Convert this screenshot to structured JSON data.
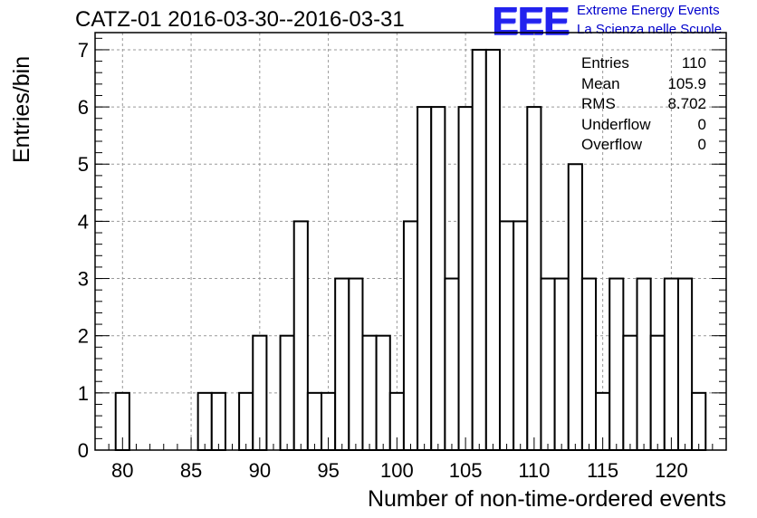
{
  "header": {
    "title": "CATZ-01 2016-03-30--2016-03-31",
    "logo_mark": "EEE",
    "logo_line1": "Extreme Energy Events",
    "logo_line2": "La Scienza nelle Scuole"
  },
  "stats_box": {
    "rows": [
      {
        "label": "Entries",
        "value": "110"
      },
      {
        "label": "Mean",
        "value": "105.9"
      },
      {
        "label": "RMS",
        "value": "8.702"
      },
      {
        "label": "Underflow",
        "value": "0"
      },
      {
        "label": "Overflow",
        "value": "0"
      }
    ]
  },
  "colors": {
    "logo": "#2222ee",
    "logo_text": "#0000cc",
    "bars": "#000000",
    "grid": "#999999"
  },
  "chart_data": {
    "type": "bar",
    "title": "CATZ-01 2016-03-30--2016-03-31",
    "xlabel": "Number of non-time-ordered events",
    "ylabel": "Entries/bin",
    "xlim": [
      78,
      124
    ],
    "ylim": [
      0,
      7.3
    ],
    "grid": true,
    "bin_width": 1,
    "xticks": [
      80,
      85,
      90,
      95,
      100,
      105,
      110,
      115,
      120
    ],
    "yticks": [
      0,
      1,
      2,
      3,
      4,
      5,
      6,
      7
    ],
    "x": [
      80,
      86,
      87,
      89,
      90,
      92,
      93,
      94,
      95,
      96,
      97,
      98,
      99,
      100,
      101,
      102,
      103,
      104,
      105,
      106,
      107,
      108,
      109,
      110,
      111,
      112,
      113,
      114,
      115,
      116,
      117,
      118,
      119,
      120,
      121,
      122
    ],
    "values": [
      1,
      1,
      1,
      1,
      2,
      2,
      4,
      1,
      1,
      3,
      3,
      2,
      2,
      1,
      4,
      6,
      6,
      3,
      6,
      7,
      7,
      4,
      4,
      6,
      3,
      3,
      5,
      3,
      1,
      3,
      2,
      3,
      2,
      3,
      3,
      1
    ]
  }
}
